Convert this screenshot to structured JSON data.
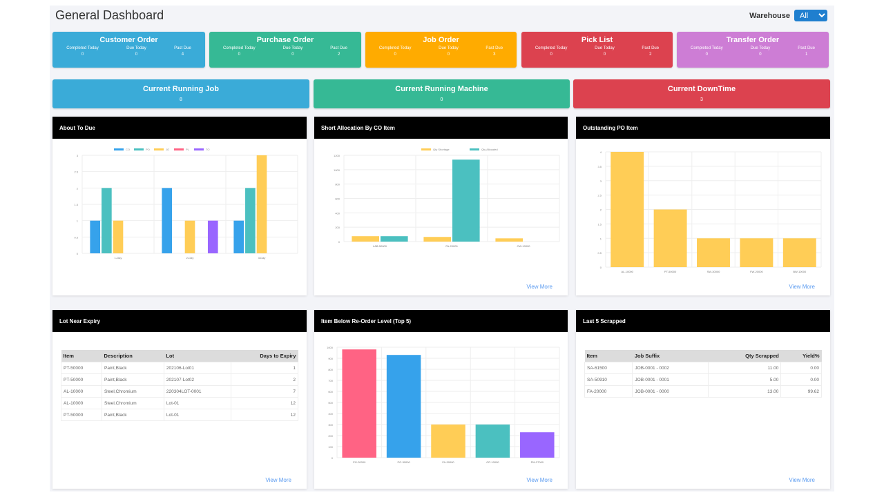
{
  "header": {
    "title": "General Dashboard",
    "warehouse_label": "Warehouse",
    "warehouse_value": "All"
  },
  "summary_cards": [
    {
      "title": "Customer Order",
      "color": "#3aabd8",
      "completed_today": "0",
      "due_today": "0",
      "past_due": "4"
    },
    {
      "title": "Purchase Order",
      "color": "#36b995",
      "completed_today": "0",
      "due_today": "0",
      "past_due": "2"
    },
    {
      "title": "Job Order",
      "color": "#ffab00",
      "completed_today": "0",
      "due_today": "0",
      "past_due": "3"
    },
    {
      "title": "Pick List",
      "color": "#dc424f",
      "completed_today": "0",
      "due_today": "0",
      "past_due": "2"
    },
    {
      "title": "Transfer Order",
      "color": "#cd7dd5",
      "completed_today": "0",
      "due_today": "0",
      "past_due": "1"
    }
  ],
  "card_labels": {
    "completed_today": "Completed Today",
    "due_today": "Due Today",
    "past_due": "Past Due"
  },
  "running_cards": [
    {
      "title": "Current Running Job",
      "value": "8",
      "color": "#3aabd8"
    },
    {
      "title": "Current Running Machine",
      "value": "0",
      "color": "#36b995"
    },
    {
      "title": "Current DownTime",
      "value": "3",
      "color": "#dc424f"
    }
  ],
  "panels": {
    "about_to_due": "About To Due",
    "short_allocation": "Short Allocation By CO Item",
    "outstanding_po": "Outstanding PO Item",
    "lot_near_expiry": "Lot Near Expiry",
    "below_reorder": "Item Below Re-Order Level (Top 5)",
    "last_scrapped": "Last 5 Scrapped",
    "view_more": "View More"
  },
  "chart_data": [
    {
      "type": "bar",
      "categories": [
        "1-Day",
        "2-Day",
        "3-Day"
      ],
      "ylim": [
        0,
        3
      ],
      "yticks": [
        0,
        0.5,
        1,
        1.5,
        2,
        2.5,
        3
      ],
      "grid": true,
      "legend": "top",
      "series": [
        {
          "name": "CO",
          "color": "#36a2eb",
          "values": [
            1,
            2,
            1
          ]
        },
        {
          "name": "PO",
          "color": "#4bc0c0",
          "values": [
            2,
            0,
            2
          ]
        },
        {
          "name": "JO",
          "color": "#ffcd56",
          "values": [
            1,
            1,
            3
          ]
        },
        {
          "name": "PL",
          "color": "#ff6384",
          "values": [
            0,
            0,
            0
          ]
        },
        {
          "name": "TO",
          "color": "#9966ff",
          "values": [
            0,
            1,
            0
          ]
        }
      ]
    },
    {
      "type": "bar",
      "categories": [
        "LAB-50000",
        "FA-20000",
        "CW-10000"
      ],
      "ylim": [
        0,
        1200
      ],
      "yticks": [
        0,
        200,
        400,
        600,
        800,
        1000,
        1200
      ],
      "grid": true,
      "legend": "top",
      "series": [
        {
          "name": "Qty Shortage",
          "color": "#ffcd56",
          "values": [
            75,
            65,
            45
          ]
        },
        {
          "name": "Qty Allocated",
          "color": "#4bc0c0",
          "values": [
            75,
            1140,
            0
          ]
        }
      ]
    },
    {
      "type": "bar",
      "categories": [
        "AL-10000",
        "PT-50000",
        "SW-30000",
        "FW-20000",
        "BW-10000"
      ],
      "ylim": [
        0,
        4
      ],
      "yticks": [
        0,
        0.5,
        1,
        1.5,
        2,
        2.5,
        3,
        3.5,
        4
      ],
      "grid": true,
      "series": [
        {
          "color": "#ffcd56",
          "values": [
            4,
            2,
            1,
            1,
            1
          ]
        }
      ]
    },
    {
      "type": "bar",
      "categories": [
        "PG-20000",
        "PG-30000",
        "FA-30000",
        "OP-10000",
        "PM-27000"
      ],
      "ylim": [
        0,
        1000
      ],
      "yticks": [
        0,
        100,
        200,
        300,
        400,
        500,
        600,
        700,
        800,
        900,
        1000
      ],
      "grid": true,
      "series": [
        {
          "colors": [
            "#ff6384",
            "#36a2eb",
            "#ffcd56",
            "#4bc0c0",
            "#9966ff"
          ],
          "values": [
            980,
            930,
            300,
            300,
            230
          ]
        }
      ]
    }
  ],
  "lot_table": {
    "headers": [
      "Item",
      "Description",
      "Lot",
      "Days to Expiry"
    ],
    "rows": [
      [
        "PT-50000",
        "Paint,Black",
        "202106-Lot01",
        "1"
      ],
      [
        "PT-50000",
        "Paint,Black",
        "202107-Lot02",
        "2"
      ],
      [
        "AL-10000",
        "Steel,Chromium",
        "220304LOT-0001",
        "7"
      ],
      [
        "AL-10000",
        "Steel,Chromium",
        "Lot-01",
        "12"
      ],
      [
        "PT-50000",
        "Paint,Black",
        "Lot-01",
        "12"
      ]
    ]
  },
  "scrap_table": {
    "headers": [
      "Item",
      "Job Suffix",
      "Qty Scrapped",
      "Yield%"
    ],
    "rows": [
      [
        "SA-61500",
        "JOB-0001 - 0002",
        "11.00",
        "0.00"
      ],
      [
        "SA-50910",
        "JOB-0001 - 0001",
        "5.00",
        "0.00"
      ],
      [
        "FA-20000",
        "JOB-0001 - 0000",
        "13.00",
        "99.62"
      ]
    ]
  }
}
